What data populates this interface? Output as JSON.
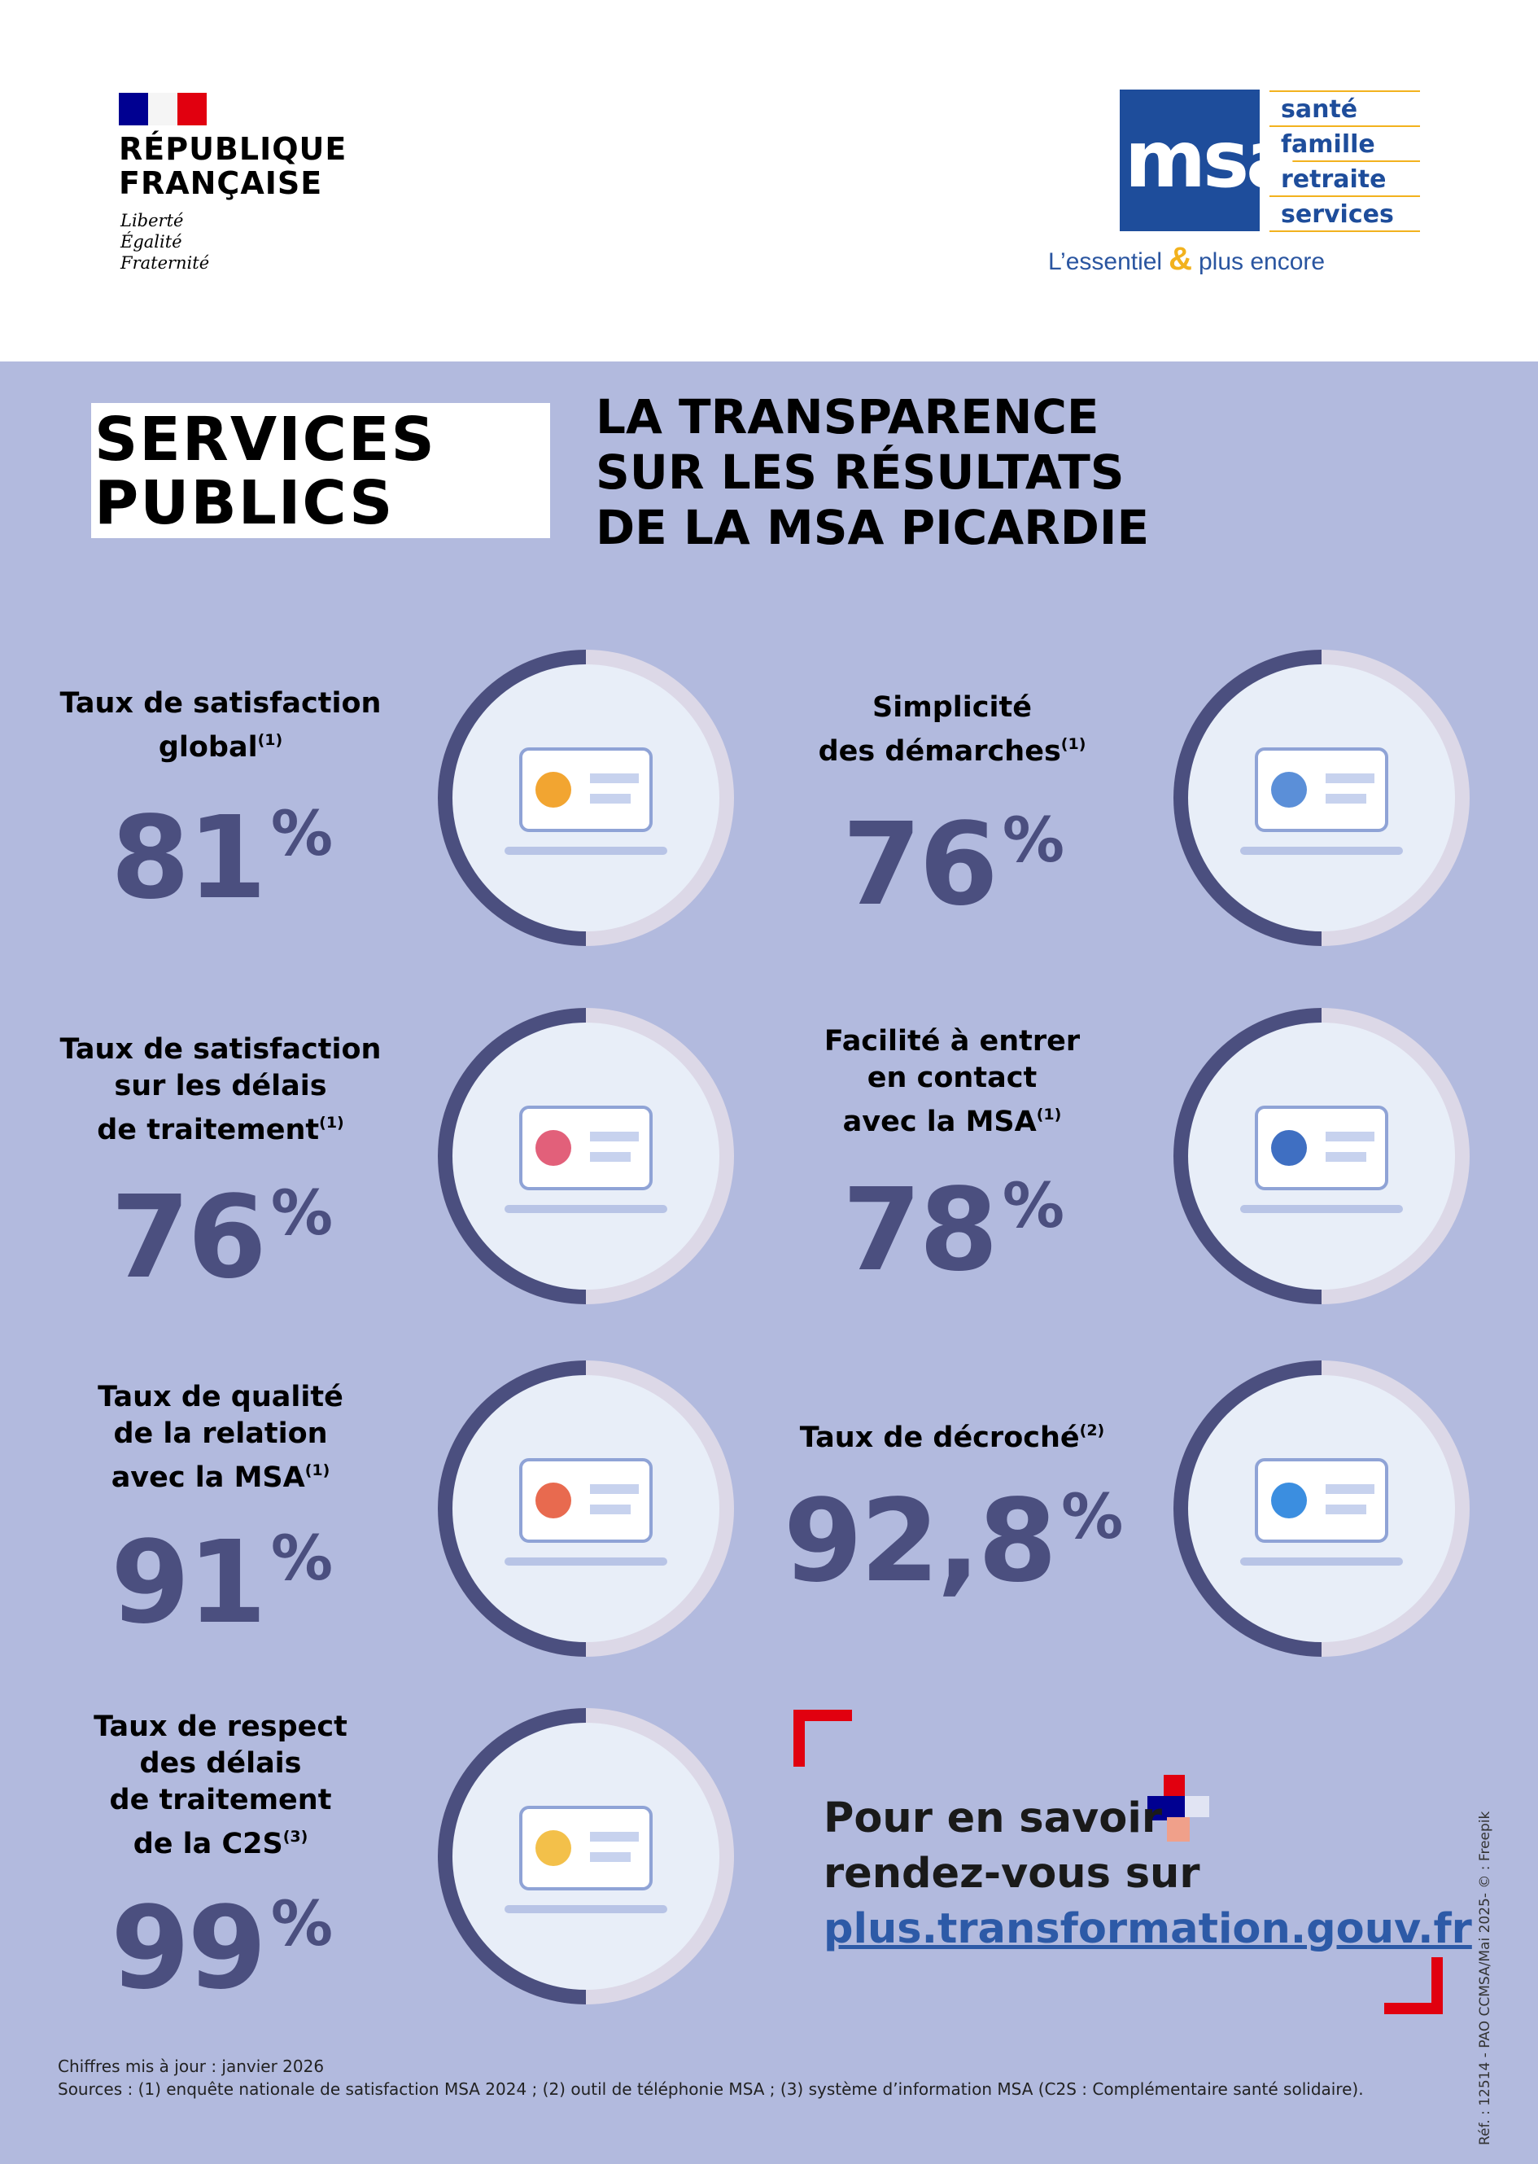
{
  "header": {
    "republique": [
      "RÉPUBLIQUE",
      "FRANÇAISE"
    ],
    "motto": [
      "Liberté",
      "Égalité",
      "Fraternité"
    ],
    "msa_logo": "msa",
    "msa_words": [
      "santé",
      "famille",
      "retraite",
      "services"
    ],
    "tagline": [
      "L’essentiel",
      "&",
      "plus encore"
    ]
  },
  "badge": [
    "SERVICES",
    "PUBLICS"
  ],
  "title": [
    "LA TRANSPARENCE",
    "SUR LES RÉSULTATS",
    "DE LA MSA PICARDIE"
  ],
  "indicators": [
    {
      "label_lines": [
        "Taux de satisfaction",
        "global"
      ],
      "note": "(1)",
      "value": "81",
      "unit": "%"
    },
    {
      "label_lines": [
        "Simplicité",
        "des démarches"
      ],
      "note": "(1)",
      "value": "76",
      "unit": "%"
    },
    {
      "label_lines": [
        "Taux de satisfaction",
        "sur les délais",
        "de traitement"
      ],
      "note": "(1)",
      "value": "76",
      "unit": "%"
    },
    {
      "label_lines": [
        "Facilité à entrer",
        "en contact",
        "avec la MSA"
      ],
      "note": "(1)",
      "value": "78",
      "unit": "%"
    },
    {
      "label_lines": [
        "Taux de qualité",
        "de la relation",
        "avec la MSA"
      ],
      "note": "(1)",
      "value": "91",
      "unit": "%"
    },
    {
      "label_lines": [
        "Taux de décroché"
      ],
      "note": "(2)",
      "value": "92,8",
      "unit": "%"
    },
    {
      "label_lines": [
        "Taux de respect",
        "des délais",
        "de traitement",
        "de la C2S"
      ],
      "note": "(3)",
      "value": "99",
      "unit": "%"
    }
  ],
  "cta": {
    "lines": [
      "Pour en savoir",
      "rendez-vous sur"
    ],
    "link": "plus.transformation.gouv.fr"
  },
  "footer": {
    "updated": "Chiffres mis à jour : janvier 2026",
    "sources": "Sources : (1) enquête nationale de satisfaction MSA 2024 ; (2) outil de téléphonie MSA ; (3) système d’information MSA (C2S : Complémentaire santé solidaire)."
  },
  "reference": "Réf. : 12514 - PAO CCMSA/Mai 2025- © : Freepik"
}
